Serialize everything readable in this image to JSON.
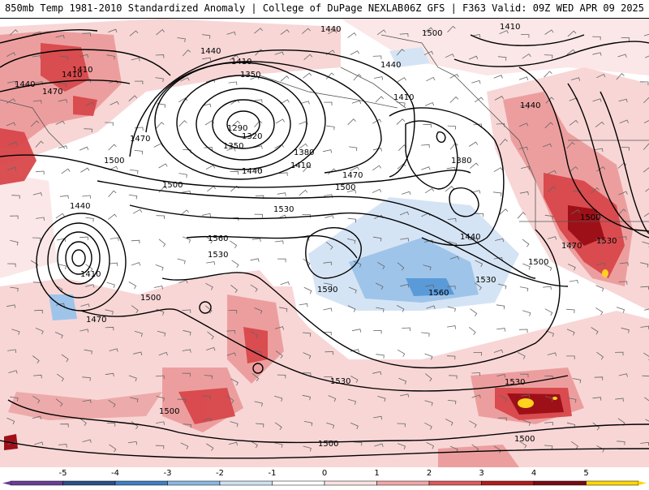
{
  "header": {
    "title": "850mb Temp 1981-2010 Standardized Anomaly | College of DuPage NEXLAB",
    "run_info": "06Z GFS | F363 Valid: 09Z WED APR 09 2025"
  },
  "contour_labels": [
    {
      "text": "1410"
    },
    {
      "text": "1440"
    },
    {
      "text": "1410"
    },
    {
      "text": "1350"
    },
    {
      "text": "1290"
    },
    {
      "text": "1320"
    },
    {
      "text": "1350"
    },
    {
      "text": "1380"
    },
    {
      "text": "1410"
    },
    {
      "text": "1440"
    },
    {
      "text": "1470"
    },
    {
      "text": "1500"
    },
    {
      "text": "1530"
    },
    {
      "text": "1560"
    },
    {
      "text": "1530"
    },
    {
      "text": "1440"
    },
    {
      "text": "1410"
    },
    {
      "text": "1380"
    },
    {
      "text": "1440"
    },
    {
      "text": "1410"
    },
    {
      "text": "1440"
    },
    {
      "text": "1470"
    },
    {
      "text": "1500"
    },
    {
      "text": "1440"
    },
    {
      "text": "1410"
    },
    {
      "text": "1470"
    },
    {
      "text": "1500"
    },
    {
      "text": "1590"
    },
    {
      "text": "1560"
    },
    {
      "text": "1530"
    },
    {
      "text": "1500"
    },
    {
      "text": "1470"
    },
    {
      "text": "1500"
    },
    {
      "text": "1530"
    },
    {
      "text": "1530"
    },
    {
      "text": "1500"
    },
    {
      "text": "1500"
    },
    {
      "text": "1500"
    },
    {
      "text": "1440"
    },
    {
      "text": "1500"
    },
    {
      "text": "1470"
    },
    {
      "text": "1530"
    },
    {
      "text": "1410"
    },
    {
      "text": "1500"
    },
    {
      "text": "1440"
    }
  ],
  "colorbar": {
    "ticks": [
      "-5",
      "-4",
      "-3",
      "-2",
      "-1",
      "0",
      "1",
      "2",
      "3",
      "4",
      "5"
    ],
    "colors": [
      "#6a3d9a",
      "#2b4f8c",
      "#3f7fc4",
      "#8ab8e3",
      "#cfe0f2",
      "#ffffff",
      "#fbe1e1",
      "#f2a7a7",
      "#e05a5a",
      "#b31b1b",
      "#7a0a14",
      "#ffd700"
    ]
  },
  "colors": {
    "warm_light": "#f8d2d2",
    "warm_mid": "#ea9898",
    "warm_strong": "#d8474a",
    "warm_extreme": "#9e1018",
    "cold_light": "#d5e4f4",
    "cold_mid": "#9ec4ea",
    "cold_strong": "#5a9ad8",
    "peak": "#ffd21f"
  }
}
